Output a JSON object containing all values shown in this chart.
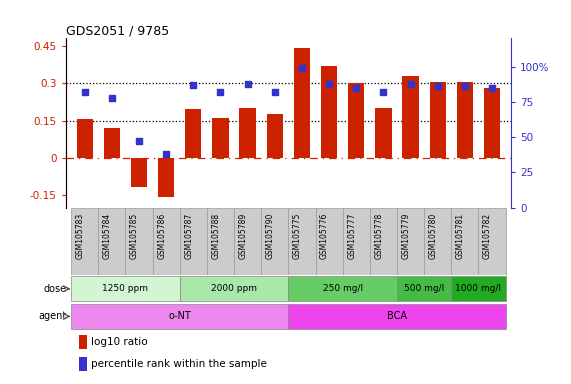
{
  "title": "GDS2051 / 9785",
  "samples": [
    "GSM105783",
    "GSM105784",
    "GSM105785",
    "GSM105786",
    "GSM105787",
    "GSM105788",
    "GSM105789",
    "GSM105790",
    "GSM105775",
    "GSM105776",
    "GSM105777",
    "GSM105778",
    "GSM105779",
    "GSM105780",
    "GSM105781",
    "GSM105782"
  ],
  "log10_ratio": [
    0.155,
    0.12,
    -0.115,
    -0.155,
    0.195,
    0.16,
    0.2,
    0.175,
    0.44,
    0.37,
    0.3,
    0.2,
    0.33,
    0.305,
    0.305,
    0.28
  ],
  "percentile": [
    82,
    78,
    47,
    38,
    87,
    82,
    88,
    82,
    99,
    88,
    85,
    82,
    88,
    86,
    86,
    85
  ],
  "bar_color": "#cc2200",
  "dot_color": "#3333cc",
  "ylim_left": [
    -0.2,
    0.48
  ],
  "ylim_right": [
    0,
    120
  ],
  "yticks_left": [
    -0.15,
    0,
    0.15,
    0.3,
    0.45
  ],
  "yticks_right": [
    0,
    25,
    50,
    75,
    100
  ],
  "hlines": [
    0.15,
    0.3
  ],
  "dose_groups": [
    {
      "label": "1250 ppm",
      "start": 0,
      "end": 4,
      "color": "#d4f5d4"
    },
    {
      "label": "2000 ppm",
      "start": 4,
      "end": 8,
      "color": "#aae8aa"
    },
    {
      "label": "250 mg/l",
      "start": 8,
      "end": 12,
      "color": "#66cc66"
    },
    {
      "label": "500 mg/l",
      "start": 12,
      "end": 14,
      "color": "#44bb44"
    },
    {
      "label": "1000 mg/l",
      "start": 14,
      "end": 16,
      "color": "#22aa22"
    }
  ],
  "agent_groups": [
    {
      "label": "o-NT",
      "start": 0,
      "end": 8,
      "color": "#ee88ee"
    },
    {
      "label": "BCA",
      "start": 8,
      "end": 16,
      "color": "#ee44ee"
    }
  ],
  "legend_items": [
    {
      "label": "log10 ratio",
      "color": "#cc2200"
    },
    {
      "label": "percentile rank within the sample",
      "color": "#3333cc"
    }
  ],
  "sample_bg_color": "#cccccc",
  "sample_border_color": "#999999"
}
